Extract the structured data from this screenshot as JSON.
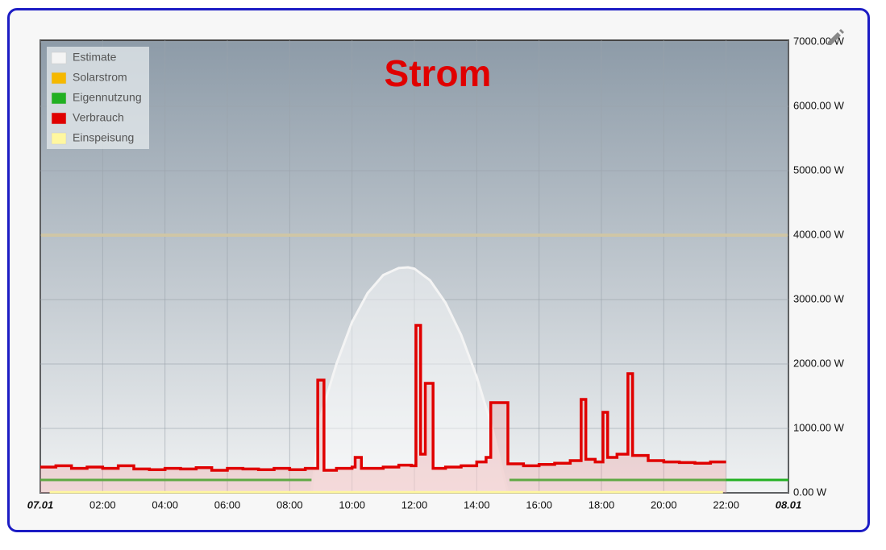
{
  "chart_data": {
    "type": "line",
    "title": "Strom",
    "xlim": [
      0,
      24
    ],
    "xticks": [
      {
        "value": 0,
        "label": "07.01"
      },
      {
        "value": 2,
        "label": "02:00"
      },
      {
        "value": 4,
        "label": "04:00"
      },
      {
        "value": 6,
        "label": "06:00"
      },
      {
        "value": 8,
        "label": "08:00"
      },
      {
        "value": 10,
        "label": "10:00"
      },
      {
        "value": 12,
        "label": "12:00"
      },
      {
        "value": 14,
        "label": "14:00"
      },
      {
        "value": 16,
        "label": "16:00"
      },
      {
        "value": 18,
        "label": "18:00"
      },
      {
        "value": 20,
        "label": "20:00"
      },
      {
        "value": 22,
        "label": "22:00"
      },
      {
        "value": 24,
        "label": "08.01"
      }
    ],
    "ylim": [
      0,
      7000
    ],
    "yticks": [
      {
        "value": 0,
        "label": "0.00 W"
      },
      {
        "value": 1000,
        "label": "1000.00 W"
      },
      {
        "value": 2000,
        "label": "2000.00 W"
      },
      {
        "value": 3000,
        "label": "3000.00 W"
      },
      {
        "value": 4000,
        "label": "4000.00 W"
      },
      {
        "value": 5000,
        "label": "5000.00 W"
      },
      {
        "value": 6000,
        "label": "6000.00 W"
      },
      {
        "value": 7000,
        "label": "7000.00 W"
      }
    ],
    "grid": true,
    "legend": "top-left",
    "reference_lines": [
      {
        "value": 4000,
        "color": "#cfc6a6"
      }
    ],
    "series": [
      {
        "name": "Estimate",
        "color": "#f4f4f4",
        "fill": "rgba(255,255,255,0.45)",
        "x": [
          8.7,
          9,
          9.5,
          10,
          10.5,
          11,
          11.5,
          11.8,
          12,
          12.5,
          13,
          13.5,
          14,
          14.5,
          15
        ],
        "values": [
          0,
          1200,
          2000,
          2650,
          3100,
          3380,
          3490,
          3500,
          3480,
          3300,
          2950,
          2450,
          1800,
          1000,
          0
        ]
      },
      {
        "name": "Solarstrom",
        "color": "#f5b800",
        "x": [],
        "values": []
      },
      {
        "name": "Eigennutzung",
        "color": "#22b022",
        "x": [
          0,
          8.7,
          8.75,
          15,
          15.05,
          24
        ],
        "values": [
          200,
          200,
          null,
          null,
          200,
          200
        ]
      },
      {
        "name": "Verbrauch",
        "color": "#e00000",
        "fill": "rgba(240,150,150,0.3)",
        "step": true,
        "x": [
          0,
          0.5,
          1,
          1.5,
          2,
          2.5,
          3,
          3.5,
          4,
          4.5,
          5,
          5.5,
          6,
          6.5,
          7,
          7.5,
          8,
          8.5,
          8.9,
          9.1,
          9.5,
          10,
          10.1,
          10.3,
          11,
          11.5,
          11.9,
          12.05,
          12.2,
          12.35,
          12.6,
          13,
          13.5,
          14,
          14.3,
          14.45,
          15,
          15.5,
          16,
          16.5,
          17,
          17.35,
          17.5,
          17.8,
          18.05,
          18.2,
          18.5,
          18.85,
          19,
          19.5,
          20,
          20.5,
          21,
          21.5,
          22
        ],
        "values": [
          400,
          420,
          380,
          400,
          380,
          420,
          370,
          360,
          380,
          370,
          390,
          350,
          380,
          370,
          360,
          380,
          360,
          380,
          1750,
          350,
          380,
          400,
          550,
          380,
          400,
          430,
          420,
          2600,
          600,
          1700,
          380,
          400,
          420,
          480,
          550,
          1400,
          450,
          420,
          440,
          460,
          500,
          1450,
          520,
          480,
          1250,
          550,
          600,
          1850,
          580,
          500,
          480,
          470,
          460,
          480,
          480
        ]
      },
      {
        "name": "Einspeisung",
        "color": "#fff7a0",
        "x": [
          0.3,
          21.9
        ],
        "values": [
          10,
          10
        ]
      }
    ]
  }
}
